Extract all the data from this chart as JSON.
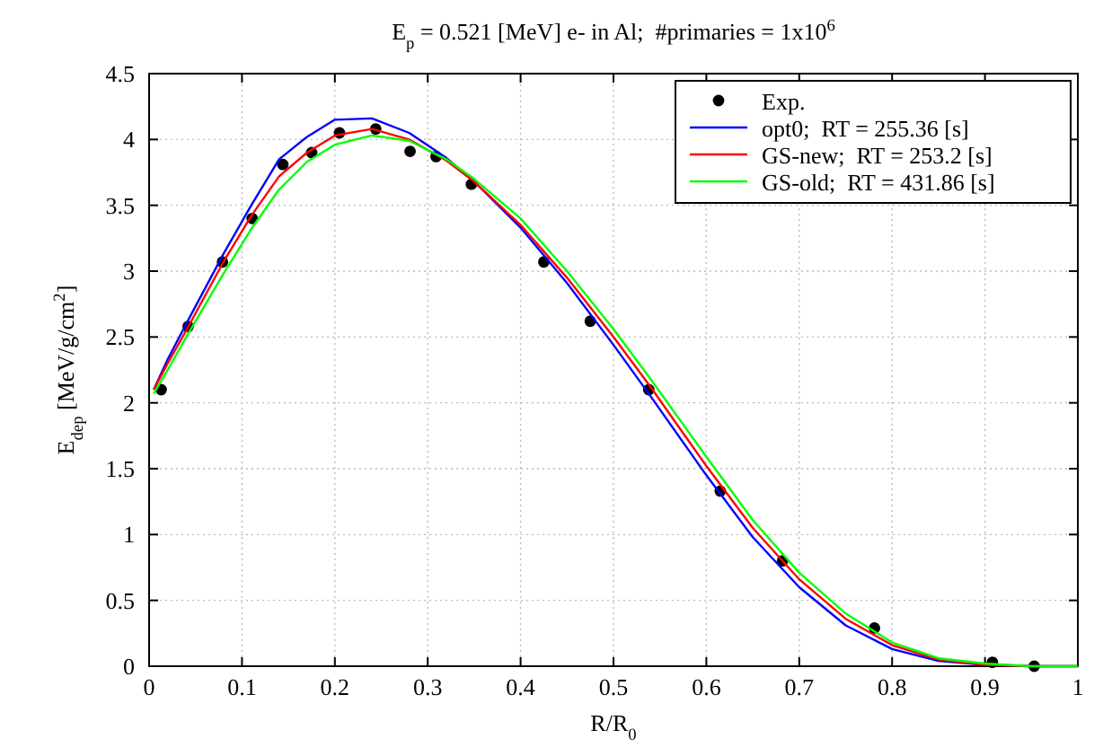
{
  "chart_data": {
    "type": "line",
    "title": "E$_{p}$ = 0.521 [MeV] e- in Al;  #primaries = 1x10$^{6}$",
    "xlabel": "R/R$_{0}$",
    "ylabel": "E$_{dep}$ [MeV/g/cm$^{2}$]",
    "xlim": [
      0,
      1
    ],
    "ylim": [
      0,
      4.5
    ],
    "xticks": [
      0,
      0.1,
      0.2,
      0.3,
      0.4,
      0.5,
      0.6,
      0.7,
      0.8,
      0.9,
      1
    ],
    "yticks": [
      0,
      0.5,
      1,
      1.5,
      2,
      2.5,
      3,
      3.5,
      4,
      4.5
    ],
    "grid": true,
    "legend": "top right",
    "series": [
      {
        "name": "Exp.",
        "type": "scatter",
        "marker": "circle",
        "color": "#000000",
        "x": [
          0.013,
          0.042,
          0.079,
          0.111,
          0.144,
          0.175,
          0.205,
          0.244,
          0.281,
          0.309,
          0.347,
          0.425,
          0.475,
          0.538,
          0.615,
          0.682,
          0.781,
          0.908,
          0.953
        ],
        "values": [
          2.1,
          2.58,
          3.07,
          3.4,
          3.81,
          3.9,
          4.05,
          4.08,
          3.91,
          3.87,
          3.66,
          3.07,
          2.62,
          2.1,
          1.33,
          0.8,
          0.29,
          0.03,
          0.0
        ]
      },
      {
        "name": "opt0;  RT = 255.36 [s]",
        "marker": "none",
        "color": "#0000ff",
        "x": [
          0.005,
          0.02,
          0.04,
          0.08,
          0.11,
          0.14,
          0.17,
          0.2,
          0.24,
          0.28,
          0.32,
          0.35,
          0.4,
          0.45,
          0.5,
          0.54,
          0.6,
          0.65,
          0.7,
          0.75,
          0.8,
          0.85,
          0.9,
          0.95,
          1.0
        ],
        "values": [
          2.1,
          2.33,
          2.6,
          3.13,
          3.5,
          3.85,
          4.02,
          4.15,
          4.16,
          4.05,
          3.86,
          3.68,
          3.33,
          2.91,
          2.44,
          2.05,
          1.45,
          0.98,
          0.6,
          0.31,
          0.13,
          0.04,
          0.01,
          0,
          0
        ]
      },
      {
        "name": "GS-new;  RT = 253.2 [s]",
        "marker": "none",
        "color": "#ff0000",
        "x": [
          0.005,
          0.02,
          0.04,
          0.08,
          0.11,
          0.14,
          0.17,
          0.2,
          0.24,
          0.28,
          0.32,
          0.35,
          0.4,
          0.45,
          0.5,
          0.54,
          0.6,
          0.65,
          0.7,
          0.75,
          0.8,
          0.85,
          0.9,
          0.95,
          1.0
        ],
        "values": [
          2.1,
          2.3,
          2.55,
          3.07,
          3.42,
          3.72,
          3.9,
          4.03,
          4.08,
          4.0,
          3.84,
          3.68,
          3.35,
          2.95,
          2.5,
          2.12,
          1.52,
          1.05,
          0.66,
          0.36,
          0.16,
          0.05,
          0.01,
          0,
          0
        ]
      },
      {
        "name": "GS-old;  RT = 431.86 [s]",
        "marker": "none",
        "color": "#00ff00",
        "x": [
          0.005,
          0.02,
          0.04,
          0.08,
          0.11,
          0.14,
          0.17,
          0.2,
          0.24,
          0.28,
          0.32,
          0.35,
          0.4,
          0.45,
          0.5,
          0.54,
          0.6,
          0.65,
          0.7,
          0.75,
          0.8,
          0.85,
          0.9,
          0.95,
          1.0
        ],
        "values": [
          2.07,
          2.25,
          2.5,
          2.98,
          3.32,
          3.62,
          3.83,
          3.96,
          4.03,
          3.99,
          3.85,
          3.7,
          3.4,
          3.0,
          2.56,
          2.18,
          1.59,
          1.11,
          0.71,
          0.4,
          0.18,
          0.06,
          0.02,
          0,
          0
        ]
      }
    ]
  }
}
